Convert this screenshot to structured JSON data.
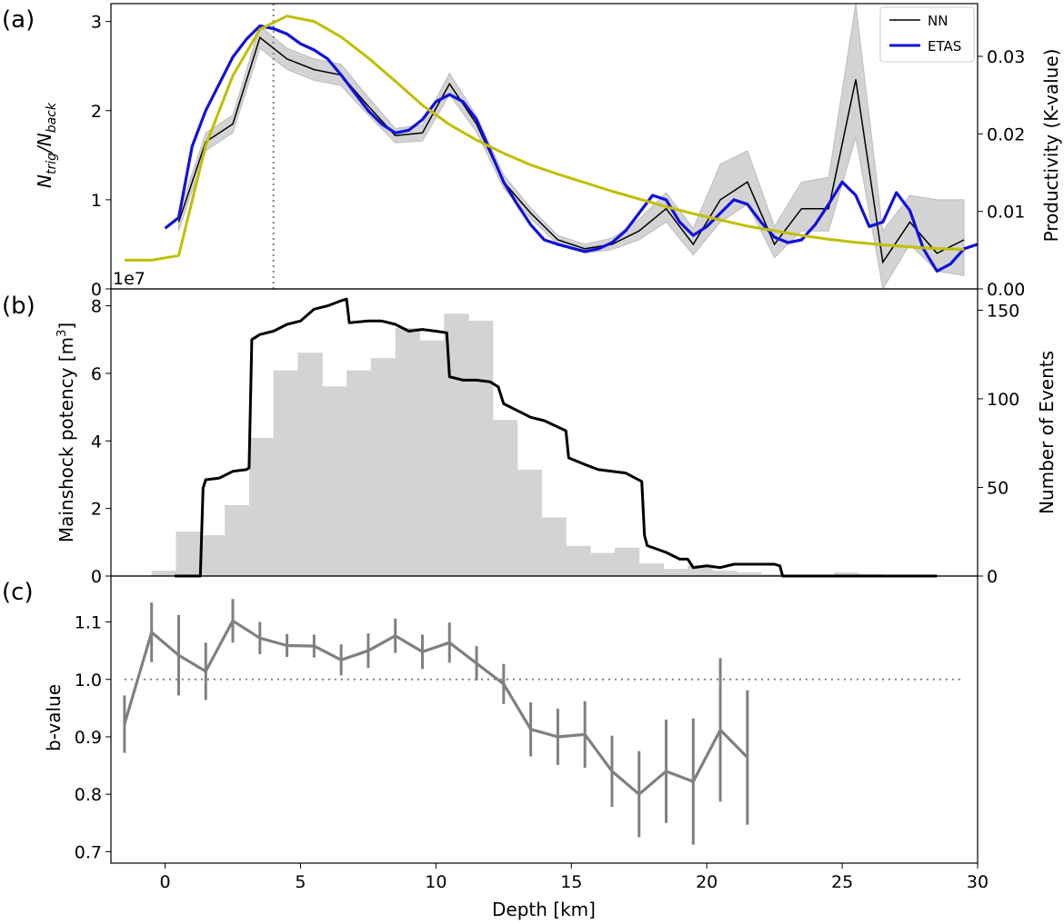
{
  "chart_data": [
    {
      "panel": "(a)",
      "type": "line",
      "xlabel": "",
      "ylabel_main": "N",
      "ylabel_sub1": "trig",
      "ylabel_mid": "/N",
      "ylabel_sub2": "back",
      "y2label": "Productivity (K-value)",
      "offset_label": "1e7",
      "xlim": [
        -2,
        30
      ],
      "ylim": [
        0,
        3.2
      ],
      "y2lim": [
        0,
        0.0368
      ],
      "yticks": [
        0,
        1,
        2,
        3
      ],
      "ytick_labels": [
        "0",
        "1",
        "2",
        "3"
      ],
      "y2ticks": [
        0,
        0.01,
        0.02,
        0.03
      ],
      "y2tick_labels": [
        "0.00",
        "0.01",
        "0.02",
        "0.03"
      ],
      "vline_x": 4.0,
      "legend": {
        "placement": "top-right",
        "entries": [
          "NN",
          "ETAS"
        ]
      },
      "colors": {
        "nn": "#000000",
        "etas": "#1010dd",
        "productivity": "#bfbf00",
        "band": "#d3d3d3",
        "vline": "#808080"
      },
      "series": [
        {
          "name": "NN",
          "x": [
            0.5,
            1.5,
            2.5,
            3.5,
            4.5,
            5.5,
            6.5,
            7.5,
            8.5,
            9.5,
            10.5,
            11.5,
            12.5,
            13.5,
            14.5,
            15.5,
            16.5,
            17.5,
            18.5,
            19.5,
            20.5,
            21.5,
            22.5,
            23.5,
            24.5,
            25.5,
            26.5,
            27.5,
            28.5,
            29.5
          ],
          "values": [
            0.75,
            1.65,
            1.85,
            2.82,
            2.58,
            2.46,
            2.4,
            2.05,
            1.72,
            1.75,
            2.3,
            1.85,
            1.2,
            0.85,
            0.55,
            0.45,
            0.5,
            0.65,
            0.9,
            0.5,
            1.0,
            1.2,
            0.5,
            0.9,
            0.9,
            2.35,
            0.3,
            0.75,
            0.4,
            0.55
          ]
        },
        {
          "name": "NN band lower",
          "x": [
            0.5,
            1.5,
            2.5,
            3.5,
            4.5,
            5.5,
            6.5,
            7.5,
            8.5,
            9.5,
            10.5,
            11.5,
            12.5,
            13.5,
            14.5,
            15.5,
            16.5,
            17.5,
            18.5,
            19.5,
            20.5,
            21.5,
            22.5,
            23.5,
            24.5,
            25.5,
            26.5,
            27.5,
            28.5,
            29.5
          ],
          "values": [
            0.65,
            1.55,
            1.75,
            2.7,
            2.46,
            2.34,
            2.28,
            1.95,
            1.64,
            1.66,
            2.18,
            1.76,
            1.13,
            0.79,
            0.5,
            0.4,
            0.44,
            0.55,
            0.75,
            0.38,
            0.75,
            0.95,
            0.35,
            0.65,
            0.65,
            1.7,
            0.0,
            0.5,
            0.2,
            0.15
          ]
        },
        {
          "name": "NN band upper",
          "x": [
            0.5,
            1.5,
            2.5,
            3.5,
            4.5,
            5.5,
            6.5,
            7.5,
            8.5,
            9.5,
            10.5,
            11.5,
            12.5,
            13.5,
            14.5,
            15.5,
            16.5,
            17.5,
            18.5,
            19.5,
            20.5,
            21.5,
            22.5,
            23.5,
            24.5,
            25.5,
            26.5,
            27.5,
            28.5,
            29.5
          ],
          "values": [
            0.85,
            1.75,
            1.95,
            2.95,
            2.7,
            2.58,
            2.52,
            2.15,
            1.8,
            1.84,
            2.42,
            1.94,
            1.28,
            0.91,
            0.6,
            0.5,
            0.57,
            0.78,
            1.08,
            0.68,
            1.4,
            1.55,
            0.7,
            1.2,
            1.25,
            3.2,
            0.65,
            1.05,
            1.0,
            1.0
          ]
        },
        {
          "name": "ETAS",
          "x": [
            0,
            0.5,
            1,
            1.5,
            2,
            2.5,
            3,
            3.5,
            4,
            4.5,
            5,
            5.5,
            6,
            6.5,
            7,
            7.5,
            8,
            8.5,
            9,
            9.5,
            10,
            10.5,
            11,
            11.5,
            12,
            12.5,
            13,
            13.5,
            14,
            14.5,
            15,
            15.5,
            16,
            16.5,
            17,
            17.5,
            18,
            18.5,
            19,
            19.5,
            20,
            20.5,
            21,
            21.5,
            22,
            22.5,
            23,
            23.5,
            24,
            24.5,
            25,
            25.5,
            26,
            26.5,
            27,
            27.5,
            28,
            28.5,
            29,
            29.5,
            30
          ],
          "values": [
            0.68,
            0.8,
            1.6,
            2.0,
            2.3,
            2.6,
            2.8,
            2.95,
            2.92,
            2.86,
            2.75,
            2.68,
            2.58,
            2.4,
            2.2,
            2.0,
            1.85,
            1.75,
            1.78,
            1.9,
            2.1,
            2.18,
            2.1,
            1.9,
            1.55,
            1.2,
            0.95,
            0.72,
            0.55,
            0.5,
            0.46,
            0.42,
            0.45,
            0.52,
            0.65,
            0.85,
            1.05,
            1.0,
            0.75,
            0.6,
            0.7,
            0.85,
            1.0,
            0.95,
            0.75,
            0.58,
            0.52,
            0.55,
            0.72,
            0.95,
            1.2,
            1.05,
            0.7,
            0.75,
            1.08,
            0.88,
            0.45,
            0.2,
            0.28,
            0.45,
            0.5
          ]
        },
        {
          "name": "Productivity (K-value)",
          "axis": "right",
          "x": [
            -1.5,
            -0.5,
            0.5,
            1.5,
            2.5,
            3.5,
            4.5,
            5.5,
            6.5,
            7.5,
            8.5,
            9.5,
            10.5,
            11.5,
            12.5,
            13.5,
            14.5,
            15.5,
            16.5,
            17.5,
            18.5,
            19.5,
            20.5,
            21.5,
            22.5,
            23.5,
            24.5,
            25.5,
            26.5,
            27.5,
            28.5,
            29.5
          ],
          "values": [
            0.0037,
            0.0037,
            0.0043,
            0.0185,
            0.0275,
            0.0335,
            0.0352,
            0.0345,
            0.0325,
            0.0298,
            0.0268,
            0.0237,
            0.0212,
            0.0192,
            0.0175,
            0.016,
            0.0148,
            0.0137,
            0.0126,
            0.0116,
            0.0106,
            0.0097,
            0.0089,
            0.0081,
            0.0075,
            0.0069,
            0.0064,
            0.006,
            0.0057,
            0.0054,
            0.0052,
            0.0051
          ]
        }
      ]
    },
    {
      "panel": "(b)",
      "type": "bar",
      "xlabel": "",
      "ylabel": "Mainshock potency [m",
      "ylabel_sup": "3",
      "ylabel_end": "]",
      "y2label": "Number of Events",
      "xlim": [
        -2,
        30
      ],
      "ylim": [
        0,
        8.5
      ],
      "y2lim": [
        0,
        162
      ],
      "yticks": [
        0,
        2,
        4,
        6,
        8
      ],
      "ytick_labels": [
        "0",
        "2",
        "4",
        "6",
        "8"
      ],
      "y2ticks": [
        0,
        50,
        100,
        150
      ],
      "y2tick_labels": [
        "0",
        "50",
        "100",
        "150"
      ],
      "colors": {
        "hist": "#d3d3d3",
        "potency": "#000000"
      },
      "histogram": {
        "name": "Number of Events",
        "bin_width": 0.9,
        "bin_centers": [
          -0.05,
          0.85,
          1.75,
          2.65,
          3.55,
          4.45,
          5.35,
          6.25,
          7.15,
          8.05,
          8.95,
          9.85,
          10.75,
          11.65,
          12.55,
          13.45,
          14.35,
          15.25,
          16.15,
          17.05,
          17.95,
          18.85,
          19.75,
          20.65,
          21.55,
          22.45,
          23.35,
          24.25,
          25.15,
          26.05,
          27.05,
          28.05
        ],
        "values": [
          3,
          25,
          23,
          40,
          78,
          116,
          126,
          107,
          116,
          123,
          140,
          133,
          148,
          144,
          88,
          60,
          33,
          17,
          13,
          16,
          7,
          4,
          6,
          3,
          2,
          1,
          0,
          0,
          2,
          1,
          0,
          0
        ]
      },
      "series": [
        {
          "name": "Mainshock potency",
          "x": [
            0.35,
            1.3,
            1.4,
            1.5,
            2.0,
            2.5,
            3.0,
            3.1,
            3.2,
            3.5,
            4.0,
            4.5,
            5.0,
            5.5,
            6.0,
            6.5,
            6.7,
            6.8,
            7.5,
            8.0,
            8.5,
            9.0,
            9.5,
            10.0,
            10.4,
            10.5,
            11.0,
            11.5,
            12.0,
            12.3,
            12.5,
            13.0,
            13.5,
            14.0,
            14.8,
            14.9,
            15.5,
            16.0,
            17.0,
            17.6,
            17.7,
            17.8,
            18.5,
            19.0,
            19.3,
            19.5,
            20.0,
            20.5,
            21.0,
            22.5,
            22.7,
            22.8,
            28.5
          ],
          "values": [
            0,
            0,
            2.6,
            2.85,
            2.9,
            3.1,
            3.15,
            3.2,
            7.0,
            7.15,
            7.25,
            7.45,
            7.55,
            7.9,
            8.0,
            8.15,
            8.2,
            7.5,
            7.55,
            7.55,
            7.45,
            7.25,
            7.3,
            7.25,
            7.2,
            5.9,
            5.8,
            5.8,
            5.75,
            5.6,
            5.1,
            4.9,
            4.7,
            4.6,
            4.3,
            3.5,
            3.3,
            3.15,
            3.05,
            2.8,
            1.2,
            0.9,
            0.7,
            0.5,
            0.5,
            0.25,
            0.3,
            0.25,
            0.35,
            0.35,
            0.3,
            0.0,
            0.0
          ]
        }
      ]
    },
    {
      "panel": "(c)",
      "type": "line",
      "xlabel": "Depth [km]",
      "ylabel": "b-value",
      "xlim": [
        -2,
        30
      ],
      "ylim": [
        0.68,
        1.18
      ],
      "yticks": [
        0.7,
        0.8,
        0.9,
        1.0,
        1.1
      ],
      "ytick_labels": [
        "0.7",
        "0.8",
        "0.9",
        "1.0",
        "1.1"
      ],
      "xticks": [
        0,
        5,
        10,
        15,
        20,
        25,
        30
      ],
      "xtick_labels": [
        "0",
        "5",
        "10",
        "15",
        "20",
        "25",
        "30"
      ],
      "hline_y": 1.0,
      "colors": {
        "line": "#808080",
        "hline": "#808080"
      },
      "series": [
        {
          "name": "b-value",
          "x": [
            -1.5,
            -0.5,
            0.5,
            1.5,
            2.5,
            3.5,
            4.5,
            5.5,
            6.5,
            7.5,
            8.5,
            9.5,
            10.5,
            11.5,
            12.5,
            13.5,
            14.5,
            15.5,
            16.5,
            17.5,
            18.5,
            19.5,
            20.5,
            21.5
          ],
          "values": [
            0.922,
            1.082,
            1.042,
            1.014,
            1.102,
            1.072,
            1.059,
            1.058,
            1.034,
            1.05,
            1.076,
            1.048,
            1.064,
            1.028,
            0.992,
            0.913,
            0.9,
            0.904,
            0.84,
            0.8,
            0.84,
            0.822,
            0.912,
            0.864
          ],
          "error": [
            0.05,
            0.052,
            0.07,
            0.05,
            0.038,
            0.028,
            0.02,
            0.02,
            0.027,
            0.03,
            0.03,
            0.03,
            0.035,
            0.03,
            0.035,
            0.047,
            0.049,
            0.058,
            0.062,
            0.075,
            0.09,
            0.11,
            0.125,
            0.117
          ]
        }
      ]
    }
  ]
}
